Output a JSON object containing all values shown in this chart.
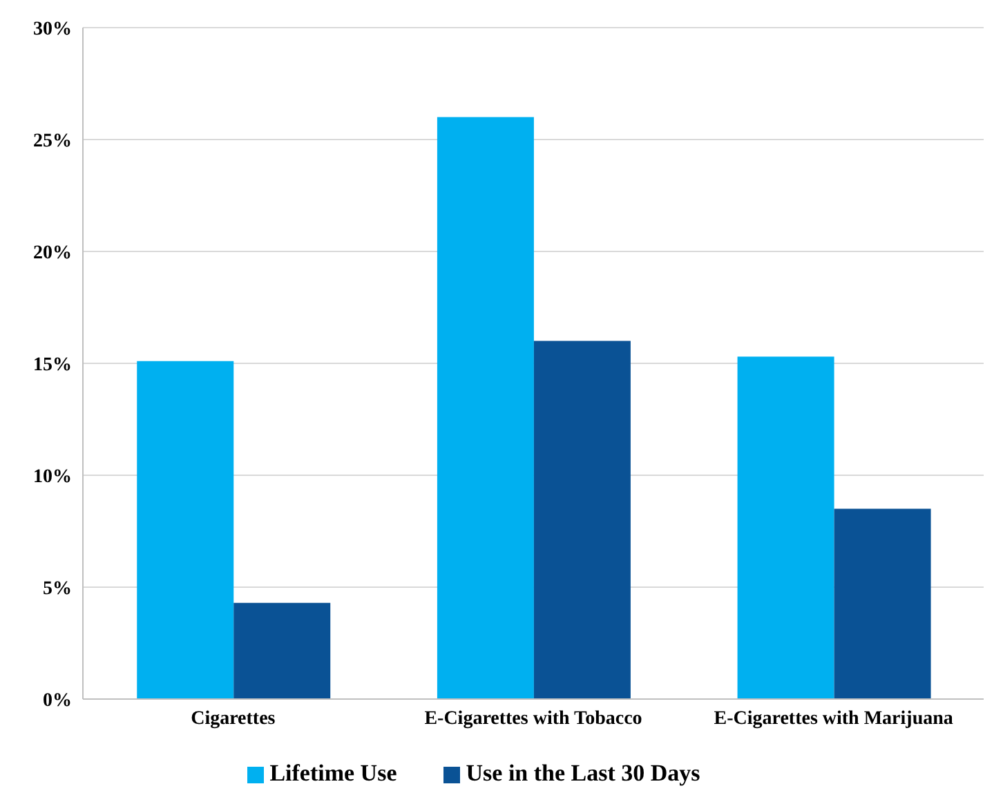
{
  "chart_data": {
    "type": "bar",
    "categories": [
      "Cigarettes",
      "E-Cigarettes with Tobacco",
      "E-Cigarettes with Marijuana"
    ],
    "series": [
      {
        "name": "Lifetime Use",
        "color": "#00b0f0",
        "values": [
          15.1,
          26,
          15.3
        ]
      },
      {
        "name": "Use in the Last 30 Days",
        "color": "#0a5295",
        "values": [
          4.3,
          16,
          8.5
        ]
      }
    ],
    "ylim": [
      0,
      30
    ],
    "yticks": [
      {
        "value": 0,
        "label": "0%"
      },
      {
        "value": 5,
        "label": "5%"
      },
      {
        "value": 10,
        "label": "10%"
      },
      {
        "value": 15,
        "label": "15%"
      },
      {
        "value": 20,
        "label": "20%"
      },
      {
        "value": 25,
        "label": "25%"
      },
      {
        "value": 30,
        "label": "30%"
      }
    ],
    "grid": "y",
    "legend": "bottom"
  }
}
